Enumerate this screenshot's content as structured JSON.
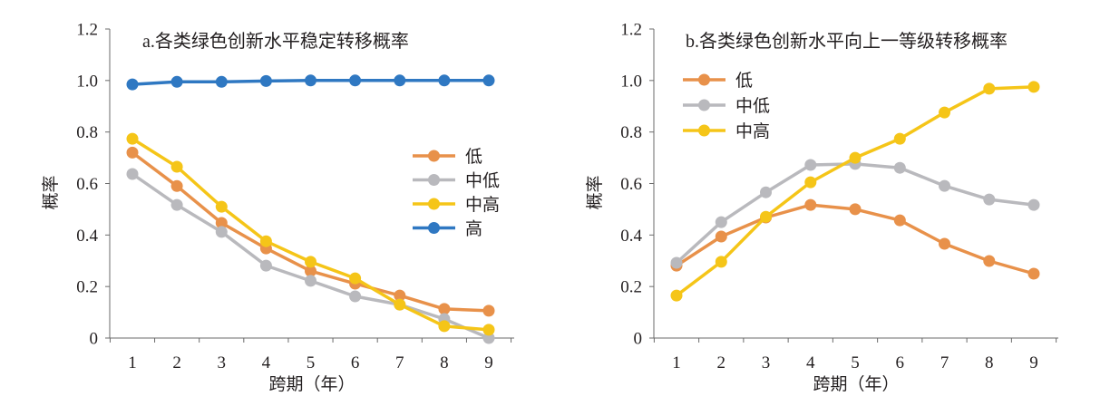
{
  "chart_data": [
    {
      "type": "line",
      "title": "a.各类绿色创新水平稳定转移概率",
      "xlabel": "跨期（年）",
      "ylabel": "概率",
      "x": [
        1,
        2,
        3,
        4,
        5,
        6,
        7,
        8,
        9
      ],
      "ylim": [
        0,
        1.2
      ],
      "yticks": [
        "0",
        "0.2",
        "0.4",
        "0.6",
        "0.8",
        "1.0",
        "1.2"
      ],
      "grid": false,
      "legend": "right",
      "series": [
        {
          "name": "低",
          "color": "#E8914A",
          "values": [
            0.72,
            0.59,
            0.447,
            0.348,
            0.26,
            0.211,
            0.165,
            0.113,
            0.106
          ]
        },
        {
          "name": "中低",
          "color": "#B9B9BD",
          "values": [
            0.637,
            0.517,
            0.412,
            0.281,
            0.222,
            0.162,
            0.13,
            0.074,
            0.0
          ]
        },
        {
          "name": "中高",
          "color": "#F5C518",
          "values": [
            0.774,
            0.665,
            0.51,
            0.376,
            0.296,
            0.232,
            0.13,
            0.046,
            0.032
          ]
        },
        {
          "name": "高",
          "color": "#2F78C2",
          "values": [
            0.985,
            0.995,
            0.995,
            0.998,
            1.0,
            1.0,
            1.0,
            1.0,
            1.0
          ]
        }
      ]
    },
    {
      "type": "line",
      "title": "b.各类绿色创新水平向上一等级转移概率",
      "xlabel": "跨期（年）",
      "ylabel": "概率",
      "x": [
        1,
        2,
        3,
        4,
        5,
        6,
        7,
        8,
        9
      ],
      "ylim": [
        0,
        1.2
      ],
      "yticks": [
        "0",
        "0.2",
        "0.4",
        "0.6",
        "0.8",
        "1.0",
        "1.2"
      ],
      "grid": false,
      "legend": "top-left",
      "series": [
        {
          "name": "低",
          "color": "#E8914A",
          "values": [
            0.281,
            0.394,
            0.468,
            0.517,
            0.5,
            0.457,
            0.366,
            0.299,
            0.25
          ]
        },
        {
          "name": "中低",
          "color": "#B9B9BD",
          "values": [
            0.292,
            0.45,
            0.566,
            0.672,
            0.676,
            0.661,
            0.591,
            0.538,
            0.517
          ]
        },
        {
          "name": "中高",
          "color": "#F5C518",
          "values": [
            0.165,
            0.296,
            0.471,
            0.605,
            0.7,
            0.774,
            0.876,
            0.968,
            0.975
          ]
        }
      ]
    }
  ]
}
